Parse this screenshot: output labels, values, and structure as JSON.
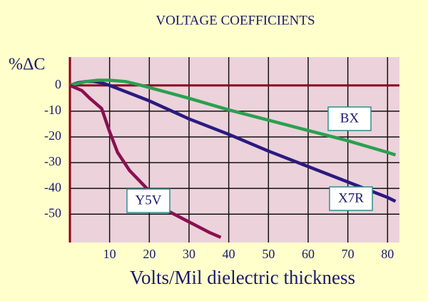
{
  "chart_data": {
    "type": "line",
    "title": "VOLTAGE COEFFICIENTS",
    "y_label": "%ΔC",
    "x_label": "Volts/Mil dielectric thickness",
    "xlim": [
      0,
      83
    ],
    "ylim": [
      -61,
      11
    ],
    "xticks": [
      10,
      20,
      30,
      40,
      50,
      60,
      70,
      80
    ],
    "yticks": [
      0,
      -10,
      -20,
      -30,
      -40,
      -50
    ],
    "grid": true,
    "series": [
      {
        "name": "X7R",
        "color": "#2a1a80",
        "x": [
          0,
          2,
          4,
          6,
          8,
          10,
          20,
          30,
          40,
          50,
          60,
          70,
          80,
          82
        ],
        "values": [
          0,
          1,
          1.5,
          1.5,
          1,
          0,
          -6,
          -13,
          -19,
          -25.5,
          -31.5,
          -37.5,
          -43.5,
          -45
        ]
      },
      {
        "name": "BX",
        "color": "#2aa050",
        "x": [
          0,
          4,
          7,
          10,
          14,
          18,
          30,
          40,
          50,
          60,
          70,
          80,
          82
        ],
        "values": [
          0,
          1.5,
          2,
          2,
          1.5,
          0,
          -5,
          -9.5,
          -13.5,
          -17.5,
          -21.5,
          -26,
          -27
        ]
      },
      {
        "name": "Y5V",
        "color": "#8a1050",
        "x": [
          0,
          3,
          5,
          8,
          10,
          12,
          15,
          20,
          25,
          30,
          35,
          38
        ],
        "values": [
          0,
          -2,
          -5,
          -9,
          -18,
          -26,
          -33,
          -41,
          -49,
          -53,
          -57,
          -59
        ]
      }
    ]
  }
}
